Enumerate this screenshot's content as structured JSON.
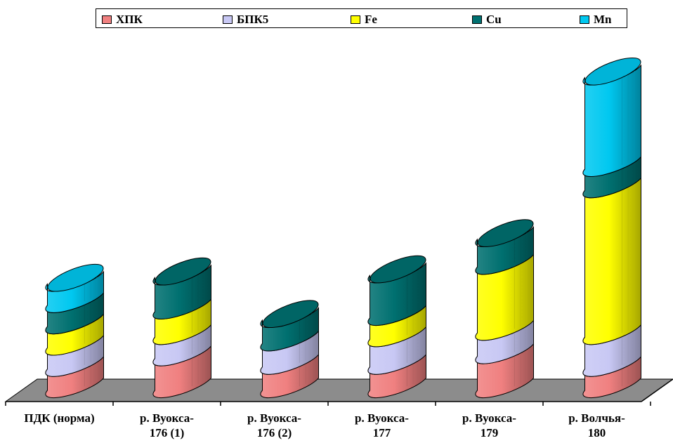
{
  "chart_data": {
    "type": "bar",
    "stacked": true,
    "three_d": true,
    "categories": [
      "ПДК (норма)",
      "р. Вуокса-\n176 (1)",
      "р. Вуокса-\n176 (2)",
      "р. Вуокса-\n177",
      "р. Вуокса-\n179",
      "р. Волчья-\n180"
    ],
    "series": [
      {
        "name": "ХПК",
        "color": "#f08080",
        "values": [
          1.0,
          1.5,
          1.1,
          1.1,
          1.6,
          1.0
        ]
      },
      {
        "name": "БПК5",
        "color": "#c8c8f4",
        "values": [
          1.0,
          1.0,
          1.1,
          1.3,
          1.1,
          1.5
        ]
      },
      {
        "name": "Fe",
        "color": "#ffff00",
        "values": [
          1.0,
          1.2,
          0.0,
          1.0,
          3.1,
          6.9
        ]
      },
      {
        "name": "Cu",
        "color": "#007070",
        "values": [
          1.0,
          1.6,
          1.1,
          2.0,
          1.3,
          1.0
        ]
      },
      {
        "name": "Mn",
        "color": "#00c8f0",
        "values": [
          1.0,
          0.0,
          0.0,
          0.0,
          0.0,
          4.3
        ]
      }
    ],
    "title": "",
    "xlabel": "",
    "ylabel": "",
    "grid": false,
    "legend": "top"
  },
  "colors": {
    "floor": "#8c8c8c",
    "outline": "#000000"
  }
}
